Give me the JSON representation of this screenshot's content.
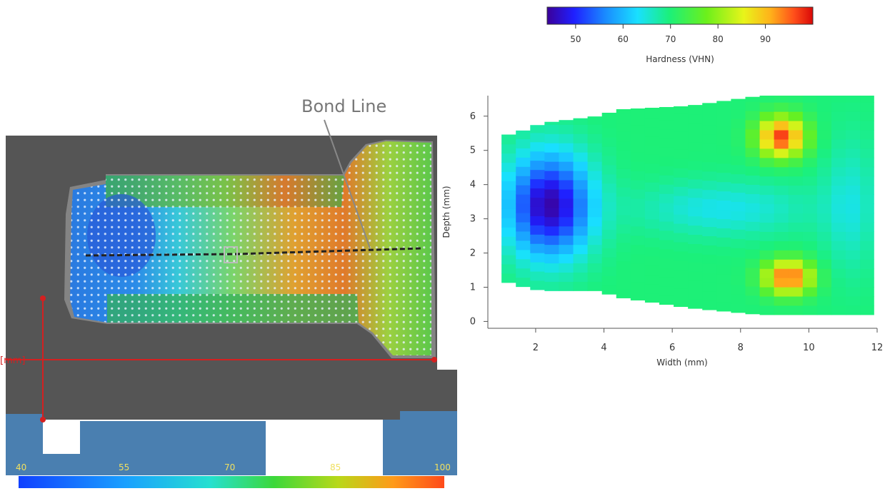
{
  "colors": {
    "jet": [
      "#3b0099",
      "#1f1fff",
      "#1a8cff",
      "#19e0ff",
      "#1bf07a",
      "#6cf01b",
      "#e8f41a",
      "#ffb21a",
      "#ff4e1a",
      "#d90808"
    ],
    "left_scale": [
      "#1040ff",
      "#1a9cff",
      "#25e0ea",
      "#2ee08a",
      "#4ccc2a",
      "#9cd41a",
      "#e8c81a",
      "#ff7a1a",
      "#ff4e1a"
    ],
    "dark_bg": "#555555",
    "blue_bg": "#4a7fb0",
    "annotation_red": "#d42020",
    "bond_line": "#222222",
    "callout_text": "#777777"
  },
  "left_figure": {
    "bond_line_label": "Bond Line",
    "scale_label": "[mm]",
    "colorbar_ticks": [
      "40",
      "55",
      "70",
      "85",
      "100"
    ]
  },
  "chart_data": {
    "type": "heatmap",
    "title": "",
    "xlabel": "Width (mm)",
    "ylabel": "Depth (mm)",
    "xlim": [
      0.6,
      12
    ],
    "ylim": [
      -0.2,
      6.6
    ],
    "x_ticks": [
      "2",
      "4",
      "6",
      "8",
      "10",
      "12"
    ],
    "y_ticks": [
      "0",
      "1",
      "2",
      "3",
      "4",
      "5",
      "6"
    ],
    "colorbar": {
      "label": "Hardness (VHN)",
      "range": [
        44,
        100
      ],
      "ticks": [
        "50",
        "60",
        "70",
        "80",
        "90"
      ]
    },
    "cell_size_mm": [
      0.42,
      0.27
    ],
    "profile_extents": [
      {
        "x": 1.0,
        "ymin": 1.2,
        "ymax": 5.4
      },
      {
        "x": 1.7,
        "ymin": 1.0,
        "ymax": 5.6
      },
      {
        "x": 2.2,
        "ymin": 0.9,
        "ymax": 5.8
      },
      {
        "x": 3.8,
        "ymin": 0.9,
        "ymax": 6.0
      },
      {
        "x": 4.5,
        "ymin": 0.7,
        "ymax": 6.2
      },
      {
        "x": 6.5,
        "ymin": 0.4,
        "ymax": 6.3
      },
      {
        "x": 8.6,
        "ymin": 0.2,
        "ymax": 6.6
      },
      {
        "x": 11.9,
        "ymin": 0.2,
        "ymax": 6.6
      }
    ],
    "hardness_field": {
      "base": 70,
      "features": [
        {
          "name": "soft zone",
          "x": 2.4,
          "y": 3.4,
          "sx": 1.2,
          "sy": 1.5,
          "value": -25
        },
        {
          "name": "hard zone top",
          "x": 9.2,
          "y": 5.4,
          "sx": 0.7,
          "sy": 0.6,
          "value": 27
        },
        {
          "name": "hard zone bottom",
          "x": 9.4,
          "y": 1.3,
          "sx": 0.7,
          "sy": 0.5,
          "value": 26
        },
        {
          "name": "cool band",
          "x": 7.5,
          "y": 3.3,
          "sx": 2.5,
          "sy": 0.8,
          "value": -6
        },
        {
          "name": "right cool edge",
          "x": 11.2,
          "y": 3.4,
          "sx": 0.8,
          "sy": 2.0,
          "value": -5
        }
      ]
    }
  }
}
